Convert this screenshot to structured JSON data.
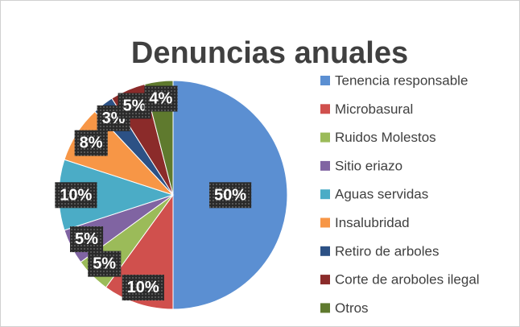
{
  "chart_data": {
    "type": "pie",
    "title": "Denuncias anuales",
    "categories": [
      "Tenencia responsable",
      "Microbasural",
      "Ruidos Molestos",
      "Sitio eriazo",
      "Aguas servidas",
      "Insalubridad",
      "Retiro de arboles",
      "Corte de aroboles ilegal",
      "Otros"
    ],
    "values": [
      50,
      10,
      5,
      5,
      10,
      8,
      3,
      5,
      4
    ],
    "value_labels": [
      "50%",
      "10%",
      "5%",
      "5%",
      "10%",
      "8%",
      "3%",
      "5%",
      "4%"
    ],
    "colors": [
      "#5b8fd2",
      "#d0504d",
      "#9bbb59",
      "#8064a2",
      "#4bacc6",
      "#f79646",
      "#2c5185",
      "#8b2b2a",
      "#5f7a2e"
    ],
    "legend": "right"
  }
}
